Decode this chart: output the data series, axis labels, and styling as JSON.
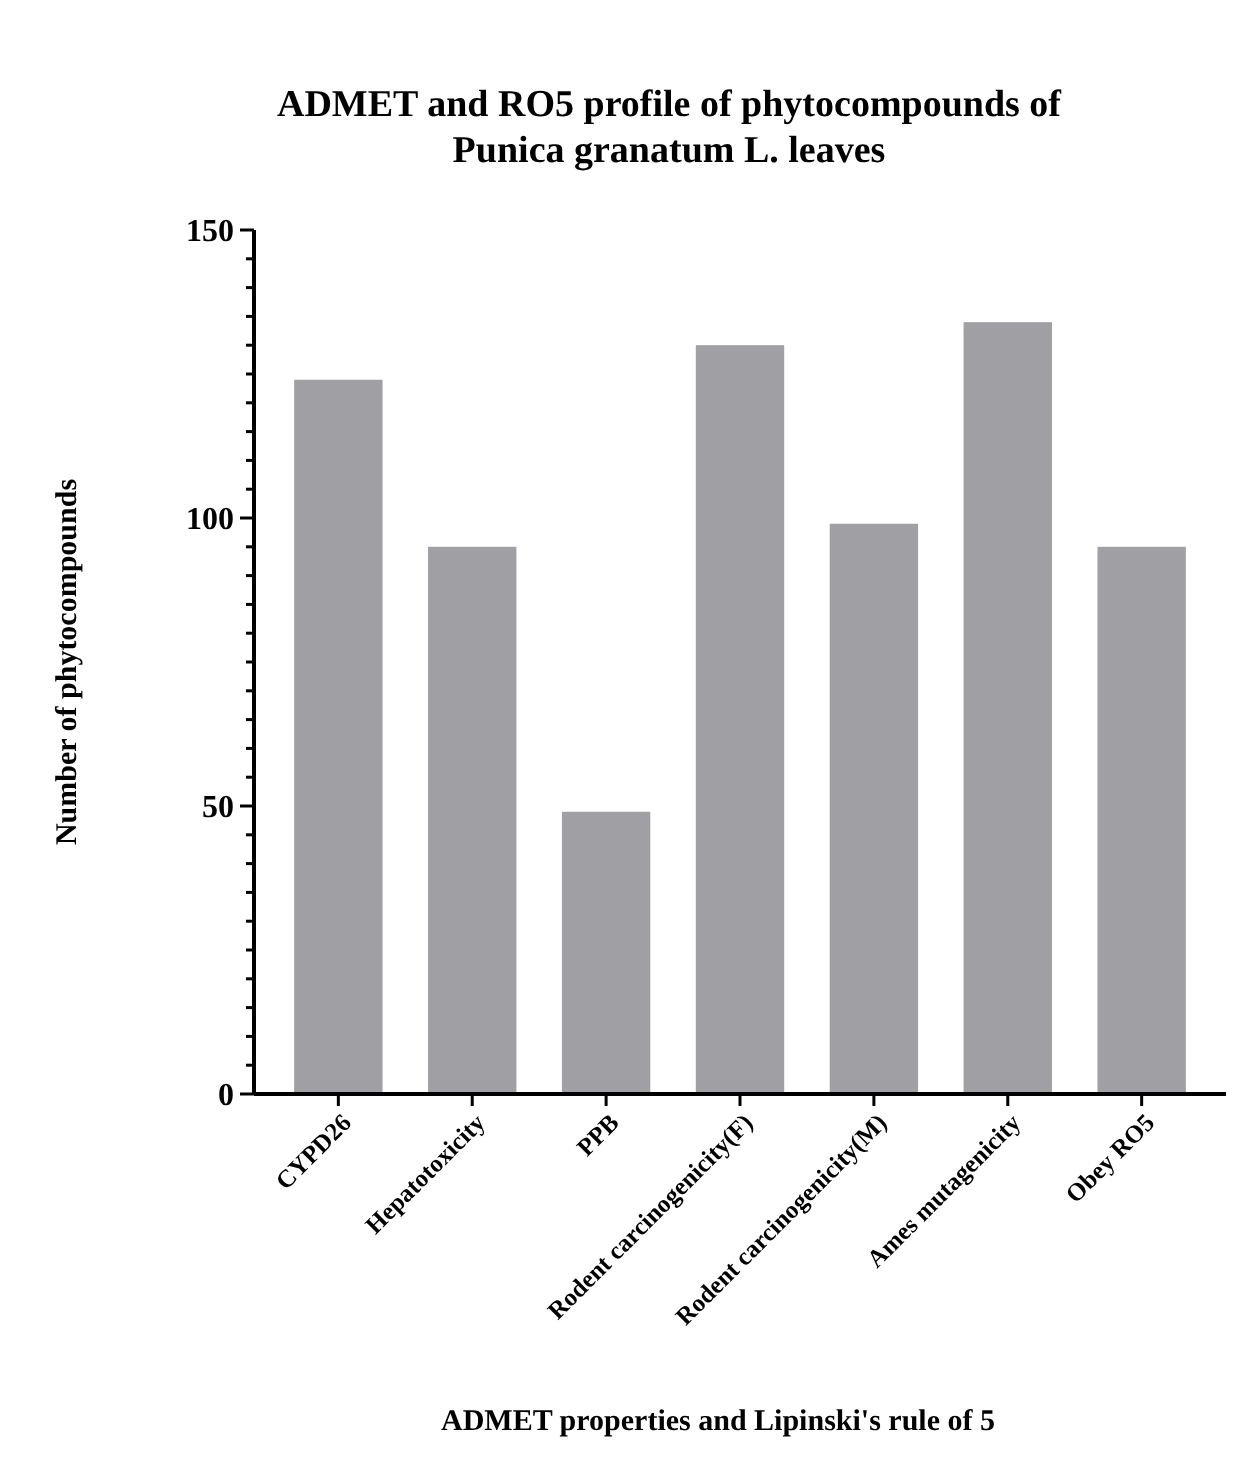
{
  "chart_data": {
    "type": "bar",
    "title": "ADMET and RO5 profile of phytocompounds of Punica granatum L. leaves",
    "xlabel": "ADMET properties and Lipinski's rule of 5",
    "ylabel": "Number of phytocompounds",
    "categories": [
      "CYPD26",
      "Hepatotoxicity",
      "PPB",
      "Rodent carcinogenicity(F)",
      "Rodent carcinogenicity(M)",
      "Ames mutagenicity",
      "Obey RO5"
    ],
    "values": [
      124,
      95,
      49,
      130,
      99,
      134,
      95
    ],
    "color": "#a09fa3",
    "ylim": [
      0,
      150
    ],
    "yticks": [
      0,
      {
        "value": 5,
        "label": null
      },
      {
        "value": 10,
        "label": null
      },
      {
        "value": 15,
        "label": null
      },
      {
        "value": 20,
        "label": null
      },
      {
        "value": 25,
        "label": null
      },
      {
        "value": 30,
        "label": null
      },
      {
        "value": 35,
        "label": null
      },
      {
        "value": 40,
        "label": null
      },
      {
        "value": 45,
        "label": null
      },
      50,
      {
        "value": 55,
        "label": null
      },
      {
        "value": 60,
        "label": null
      },
      {
        "value": 65,
        "label": null
      },
      {
        "value": 70,
        "label": null
      },
      {
        "value": 75,
        "label": null
      },
      {
        "value": 80,
        "label": null
      },
      {
        "value": 85,
        "label": null
      },
      {
        "value": 90,
        "label": null
      },
      {
        "value": 95,
        "label": null
      },
      100,
      {
        "value": 105,
        "label": null
      },
      {
        "value": 110,
        "label": null
      },
      {
        "value": 115,
        "label": null
      },
      {
        "value": 120,
        "label": null
      },
      {
        "value": 125,
        "label": null
      },
      {
        "value": 130,
        "label": null
      },
      {
        "value": 135,
        "label": null
      },
      {
        "value": 140,
        "label": null
      },
      {
        "value": 145,
        "label": null
      },
      150
    ]
  }
}
